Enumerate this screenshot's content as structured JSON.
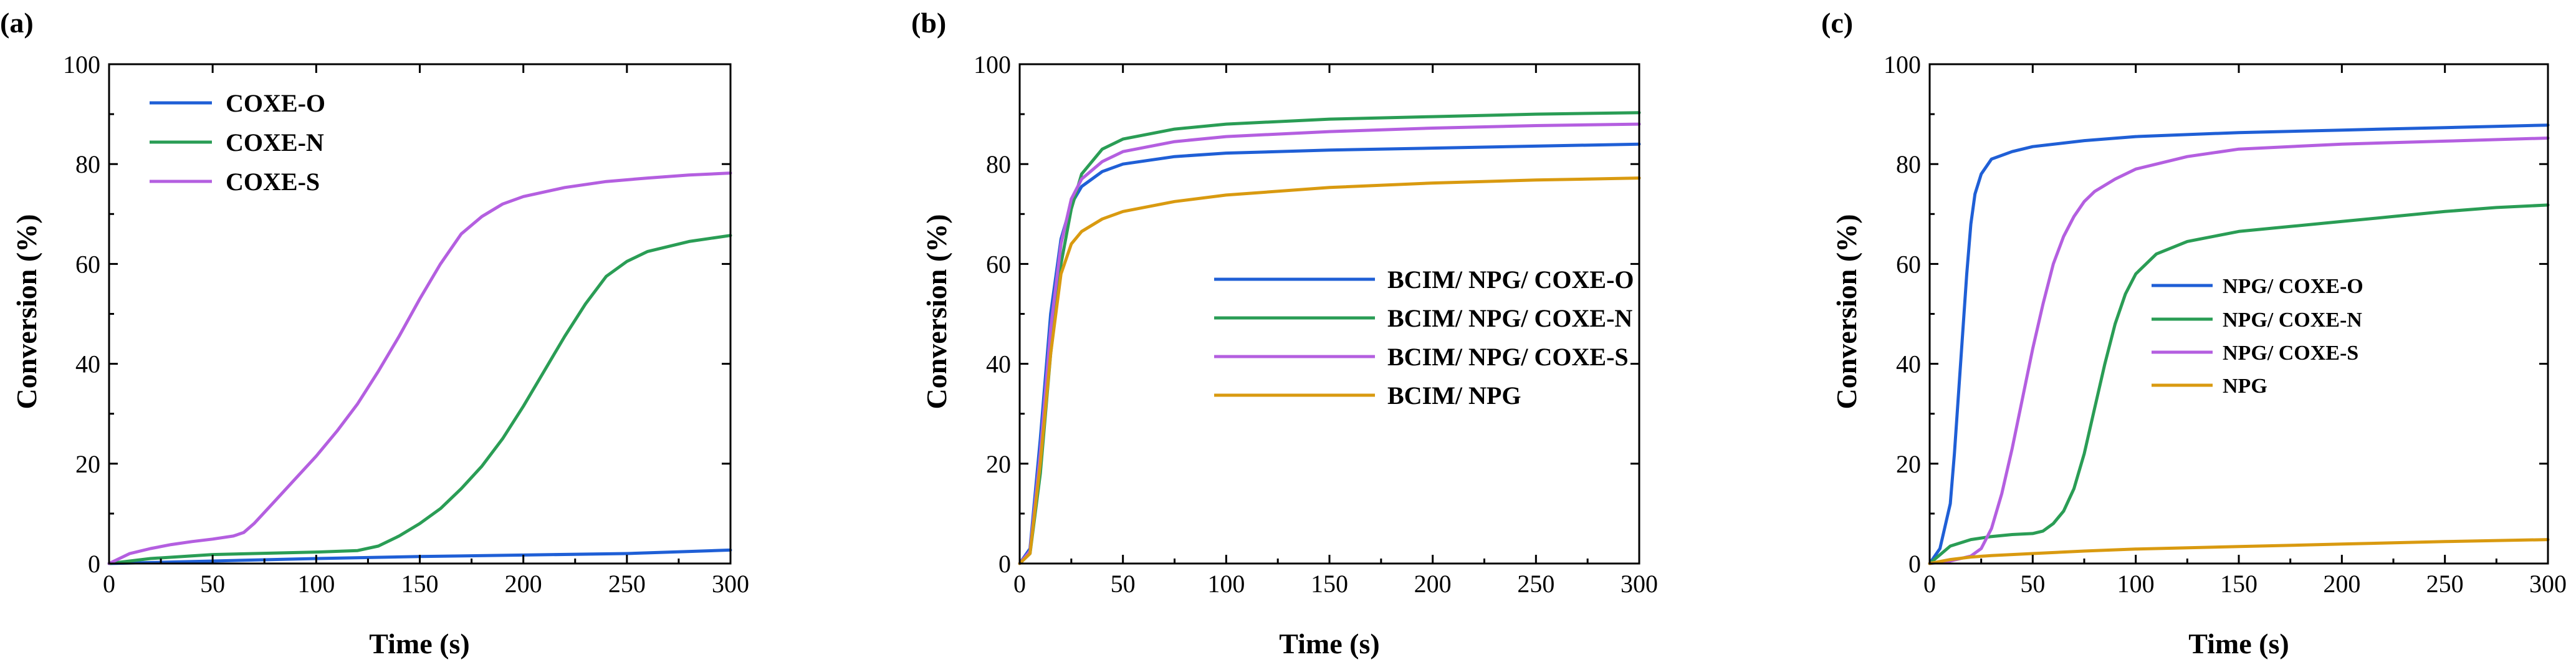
{
  "chart_data": [
    {
      "type": "line",
      "panel_label": "(a)",
      "xlabel": "Time (s)",
      "ylabel": "Conversion (%)",
      "xlim": [
        0,
        300
      ],
      "ylim": [
        0,
        100
      ],
      "xticks": [
        0,
        50,
        100,
        150,
        200,
        250,
        300
      ],
      "yticks": [
        0,
        20,
        40,
        60,
        80,
        100
      ],
      "legend_position": "top-left",
      "series": [
        {
          "name": "COXE-O",
          "color": "#1f5fd6",
          "x": [
            0,
            50,
            100,
            150,
            200,
            250,
            300
          ],
          "y": [
            0,
            0.5,
            1.0,
            1.4,
            1.7,
            2.0,
            2.7
          ]
        },
        {
          "name": "COXE-N",
          "color": "#2a9d55",
          "x": [
            0,
            20,
            50,
            100,
            120,
            130,
            140,
            150,
            160,
            170,
            180,
            190,
            200,
            210,
            220,
            230,
            240,
            250,
            260,
            280,
            300
          ],
          "y": [
            0,
            1.0,
            1.8,
            2.3,
            2.6,
            3.5,
            5.5,
            8.0,
            11.0,
            15.0,
            19.5,
            25.0,
            31.5,
            38.5,
            45.5,
            52.0,
            57.5,
            60.5,
            62.5,
            64.5,
            65.7
          ]
        },
        {
          "name": "COXE-S",
          "color": "#b45fe0",
          "x": [
            0,
            10,
            20,
            30,
            40,
            50,
            60,
            65,
            70,
            80,
            90,
            100,
            110,
            120,
            130,
            140,
            150,
            160,
            170,
            180,
            190,
            200,
            220,
            240,
            260,
            280,
            300
          ],
          "y": [
            0,
            2.0,
            3.0,
            3.8,
            4.4,
            4.9,
            5.5,
            6.2,
            8.0,
            12.5,
            17.0,
            21.5,
            26.5,
            32.0,
            38.5,
            45.5,
            53.0,
            60.0,
            66.0,
            69.5,
            72.0,
            73.5,
            75.3,
            76.5,
            77.2,
            77.8,
            78.2
          ]
        }
      ]
    },
    {
      "type": "line",
      "panel_label": "(b)",
      "xlabel": "Time (s)",
      "ylabel": "Conversion (%)",
      "xlim": [
        0,
        300
      ],
      "ylim": [
        0,
        100
      ],
      "xticks": [
        0,
        50,
        100,
        150,
        200,
        250,
        300
      ],
      "yticks": [
        0,
        20,
        40,
        60,
        80,
        100
      ],
      "legend_position": "center-right",
      "series": [
        {
          "name": "BCIM/ NPG/ COXE-O",
          "color": "#1f5fd6",
          "x": [
            0,
            5,
            10,
            15,
            20,
            25,
            30,
            40,
            50,
            75,
            100,
            150,
            200,
            250,
            300
          ],
          "y": [
            0,
            3,
            25,
            50,
            65,
            72,
            75.5,
            78.5,
            80.0,
            81.5,
            82.2,
            82.8,
            83.2,
            83.6,
            84.0
          ]
        },
        {
          "name": "BCIM/ NPG/ COXE-N",
          "color": "#2a9d55",
          "x": [
            0,
            5,
            10,
            15,
            20,
            25,
            30,
            40,
            50,
            75,
            100,
            150,
            200,
            250,
            300
          ],
          "y": [
            0,
            2,
            18,
            42,
            60,
            71,
            78,
            83,
            85,
            87,
            88,
            89,
            89.5,
            90,
            90.3
          ]
        },
        {
          "name": "BCIM/ NPG/ COXE-S",
          "color": "#b45fe0",
          "x": [
            0,
            5,
            10,
            15,
            20,
            25,
            30,
            40,
            50,
            75,
            100,
            150,
            200,
            250,
            300
          ],
          "y": [
            0,
            2.5,
            22,
            47,
            64,
            73,
            77,
            80.5,
            82.5,
            84.5,
            85.5,
            86.5,
            87.2,
            87.7,
            88.0
          ]
        },
        {
          "name": "BCIM/ NPG",
          "color": "#d99a10",
          "x": [
            0,
            5,
            10,
            15,
            20,
            25,
            30,
            40,
            50,
            75,
            100,
            150,
            200,
            250,
            300
          ],
          "y": [
            0,
            2,
            20,
            42,
            58,
            64,
            66.5,
            69,
            70.5,
            72.5,
            73.8,
            75.3,
            76.2,
            76.8,
            77.2
          ]
        }
      ]
    },
    {
      "type": "line",
      "panel_label": "(c)",
      "xlabel": "Time (s)",
      "ylabel": "Conversion (%)",
      "xlim": [
        0,
        300
      ],
      "ylim": [
        0,
        100
      ],
      "xticks": [
        0,
        50,
        100,
        150,
        200,
        250,
        300
      ],
      "yticks": [
        0,
        20,
        40,
        60,
        80,
        100
      ],
      "legend_position": "center-right",
      "series": [
        {
          "name": "NPG/ COXE-O",
          "color": "#1f5fd6",
          "x": [
            0,
            5,
            10,
            12,
            15,
            18,
            20,
            22,
            25,
            30,
            40,
            50,
            75,
            100,
            150,
            200,
            250,
            300
          ],
          "y": [
            0,
            3,
            12,
            22,
            40,
            58,
            68,
            74,
            78,
            81,
            82.5,
            83.5,
            84.7,
            85.5,
            86.3,
            86.8,
            87.3,
            87.8
          ]
        },
        {
          "name": "NPG/ COXE-N",
          "color": "#2a9d55",
          "x": [
            0,
            10,
            20,
            30,
            40,
            50,
            55,
            60,
            65,
            70,
            75,
            80,
            85,
            90,
            95,
            100,
            110,
            125,
            150,
            175,
            200,
            225,
            250,
            275,
            300
          ],
          "y": [
            0,
            3.5,
            4.8,
            5.4,
            5.8,
            6.0,
            6.5,
            8.0,
            10.5,
            15.0,
            22.0,
            31.0,
            40.0,
            48.0,
            54.0,
            58.0,
            62.0,
            64.5,
            66.5,
            67.5,
            68.5,
            69.5,
            70.5,
            71.3,
            71.8
          ]
        },
        {
          "name": "NPG/ COXE-S",
          "color": "#b45fe0",
          "x": [
            0,
            10,
            20,
            25,
            30,
            35,
            40,
            45,
            50,
            55,
            60,
            65,
            70,
            75,
            80,
            90,
            100,
            125,
            150,
            200,
            250,
            300
          ],
          "y": [
            0,
            0.5,
            1.5,
            3,
            7,
            14,
            23,
            33,
            43,
            52,
            60,
            65.5,
            69.5,
            72.5,
            74.5,
            77,
            79,
            81.5,
            83,
            84,
            84.6,
            85.2
          ]
        },
        {
          "name": "NPG",
          "color": "#d99a10",
          "x": [
            0,
            10,
            20,
            30,
            50,
            75,
            100,
            150,
            200,
            250,
            300
          ],
          "y": [
            0,
            0.8,
            1.3,
            1.6,
            2.0,
            2.5,
            2.9,
            3.4,
            3.9,
            4.4,
            4.8
          ]
        }
      ]
    }
  ]
}
